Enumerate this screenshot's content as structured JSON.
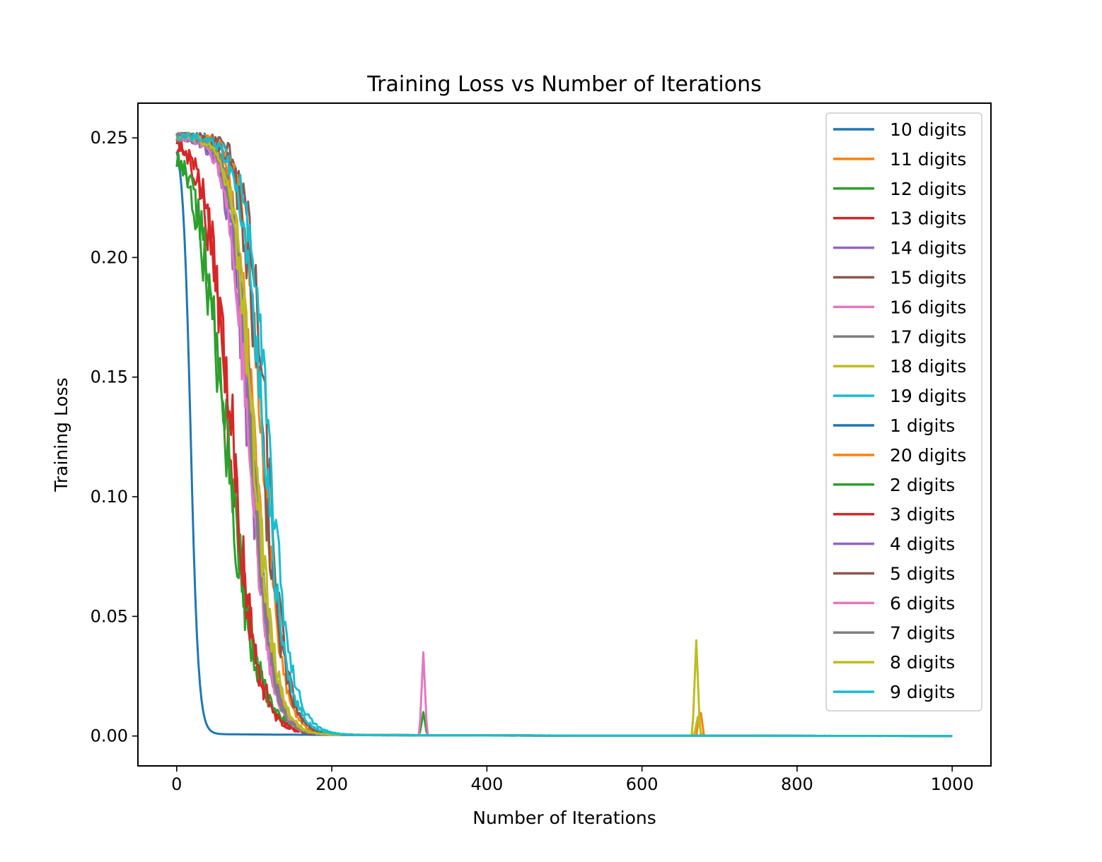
{
  "chart_data": {
    "type": "line",
    "title": "Training Loss vs Number of Iterations",
    "xlabel": "Number of Iterations",
    "ylabel": "Training Loss",
    "xlim": [
      -50,
      1050
    ],
    "ylim": [
      -0.0125,
      0.2645
    ],
    "xticks": [
      0,
      200,
      400,
      600,
      800,
      1000
    ],
    "xtick_labels": [
      "0",
      "200",
      "400",
      "600",
      "800",
      "1000"
    ],
    "yticks": [
      0.0,
      0.05,
      0.1,
      0.15,
      0.2,
      0.25
    ],
    "ytick_labels": [
      "0.00",
      "0.05",
      "0.10",
      "0.15",
      "0.20",
      "0.25"
    ],
    "grid": false,
    "legend_position": "top-right",
    "series": [
      {
        "name": "10 digits",
        "color": "#1f77b4",
        "drop_iter": 95,
        "width": 14,
        "noise": 0.012,
        "spike": null
      },
      {
        "name": "11 digits",
        "color": "#ff7f0e",
        "drop_iter": 100,
        "width": 13,
        "noise": 0.01,
        "spike": [
          675,
          0.012
        ]
      },
      {
        "name": "12 digits",
        "color": "#2ca02c",
        "drop_iter": 62,
        "width": 20,
        "noise": 0.016,
        "spike": [
          318,
          0.01
        ]
      },
      {
        "name": "13 digits",
        "color": "#d62728",
        "drop_iter": 70,
        "width": 17,
        "noise": 0.02,
        "spike": null
      },
      {
        "name": "14 digits",
        "color": "#9467bd",
        "drop_iter": 92,
        "width": 14,
        "noise": 0.013,
        "spike": null
      },
      {
        "name": "15 digits",
        "color": "#8c564b",
        "drop_iter": 115,
        "width": 13,
        "noise": 0.017,
        "spike": null
      },
      {
        "name": "16 digits",
        "color": "#e377c2",
        "drop_iter": 95,
        "width": 13,
        "noise": 0.012,
        "spike": [
          318,
          0.035
        ]
      },
      {
        "name": "17 digits",
        "color": "#7f7f7f",
        "drop_iter": 98,
        "width": 13,
        "noise": 0.011,
        "spike": null
      },
      {
        "name": "18 digits",
        "color": "#bcbd22",
        "drop_iter": 100,
        "width": 14,
        "noise": 0.011,
        "spike": [
          670,
          0.04
        ]
      },
      {
        "name": "19 digits",
        "color": "#17becf",
        "drop_iter": 118,
        "width": 15,
        "noise": 0.012,
        "spike": null
      },
      {
        "name": "1 digits",
        "color": "#1f77b4",
        "drop_iter": 18,
        "width": 5,
        "noise": 0.0,
        "spike": null
      },
      {
        "name": "20 digits",
        "color": "#ff7f0e",
        "drop_iter": 110,
        "width": 13,
        "noise": 0.01,
        "spike": null
      },
      {
        "name": "2 digits",
        "color": "#2ca02c",
        "drop_iter": 65,
        "width": 20,
        "noise": 0.015,
        "spike": null
      },
      {
        "name": "3 digits",
        "color": "#d62728",
        "drop_iter": 72,
        "width": 17,
        "noise": 0.018,
        "spike": null
      },
      {
        "name": "4 digits",
        "color": "#9467bd",
        "drop_iter": 95,
        "width": 14,
        "noise": 0.012,
        "spike": null
      },
      {
        "name": "5 digits",
        "color": "#8c564b",
        "drop_iter": 110,
        "width": 14,
        "noise": 0.018,
        "spike": null
      },
      {
        "name": "6 digits",
        "color": "#e377c2",
        "drop_iter": 92,
        "width": 14,
        "noise": 0.012,
        "spike": null
      },
      {
        "name": "7 digits",
        "color": "#7f7f7f",
        "drop_iter": 96,
        "width": 13,
        "noise": 0.01,
        "spike": null
      },
      {
        "name": "8 digits",
        "color": "#bcbd22",
        "drop_iter": 98,
        "width": 14,
        "noise": 0.011,
        "spike": [
          672,
          0.008
        ]
      },
      {
        "name": "9 digits",
        "color": "#17becf",
        "drop_iter": 112,
        "width": 15,
        "noise": 0.012,
        "spike": null
      }
    ],
    "x_range": [
      0,
      1000
    ],
    "initial_loss": 0.25
  }
}
